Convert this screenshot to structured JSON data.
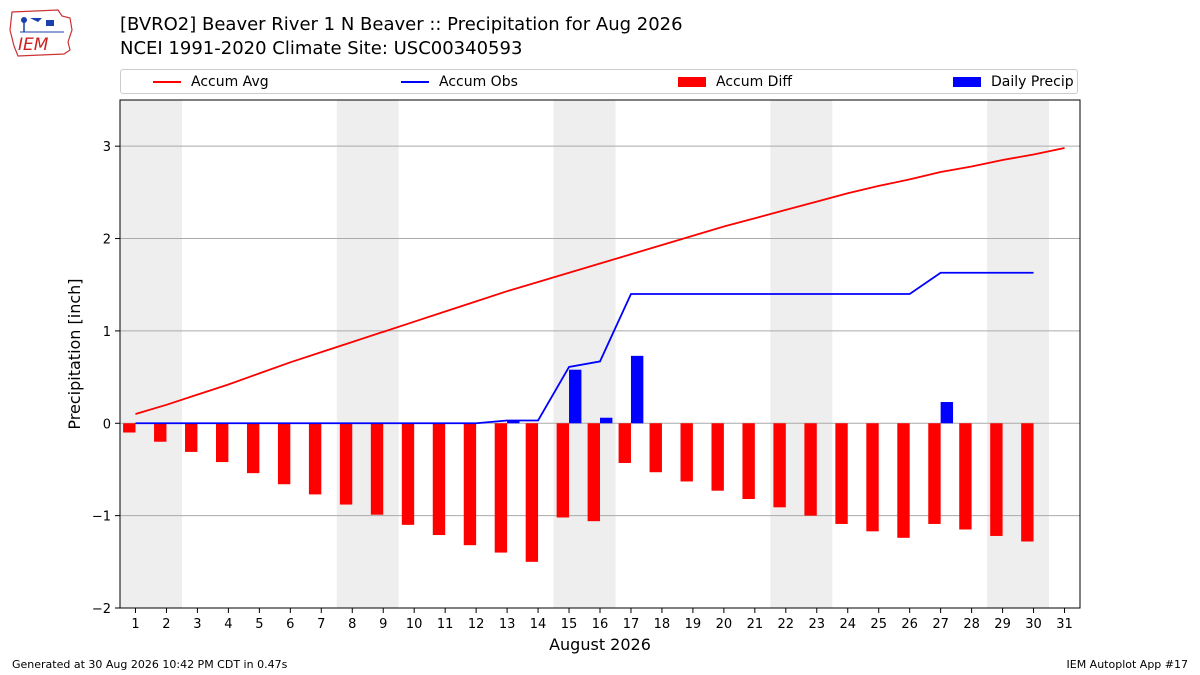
{
  "header": {
    "title_line1": "[BVRO2] Beaver River 1 N Beaver :: Precipitation for Aug 2026",
    "title_line2": "NCEI 1991-2020 Climate Site: USC00340593",
    "logo_text": "IEM"
  },
  "legend": {
    "items": [
      {
        "label": "Accum Avg",
        "kind": "line",
        "color": "#ff0000"
      },
      {
        "label": "Accum Obs",
        "kind": "line",
        "color": "#0000ff"
      },
      {
        "label": "Accum Diff",
        "kind": "bar",
        "color": "#ff0000"
      },
      {
        "label": "Daily Precip",
        "kind": "bar",
        "color": "#0000ff"
      }
    ]
  },
  "chart_data": {
    "type": "bar",
    "title": "[BVRO2] Beaver River 1 N Beaver :: Precipitation for Aug 2026",
    "xlabel": "August 2026",
    "ylabel": "Precipitation [inch]",
    "ylim": [
      -2,
      3.5
    ],
    "xlim": [
      0.5,
      31.5
    ],
    "yticks": [
      -2,
      -1,
      0,
      1,
      2,
      3
    ],
    "ytick_labels": [
      "−2",
      "−1",
      "0",
      "1",
      "2",
      "3"
    ],
    "xticks": [
      1,
      2,
      3,
      4,
      5,
      6,
      7,
      8,
      9,
      10,
      11,
      12,
      13,
      14,
      15,
      16,
      17,
      18,
      19,
      20,
      21,
      22,
      23,
      24,
      25,
      26,
      27,
      28,
      29,
      30,
      31
    ],
    "grid": "horizontal",
    "weekend_shading": [
      [
        1,
        2
      ],
      [
        8,
        9
      ],
      [
        15,
        16
      ],
      [
        22,
        23
      ],
      [
        29,
        30
      ]
    ],
    "series": [
      {
        "name": "Accum Avg",
        "kind": "line",
        "color": "#ff0000",
        "x": [
          1,
          2,
          3,
          4,
          5,
          6,
          7,
          8,
          9,
          10,
          11,
          12,
          13,
          14,
          15,
          16,
          17,
          18,
          19,
          20,
          21,
          22,
          23,
          24,
          25,
          26,
          27,
          28,
          29,
          30,
          31
        ],
        "values": [
          0.1,
          0.2,
          0.31,
          0.42,
          0.54,
          0.66,
          0.77,
          0.88,
          0.99,
          1.1,
          1.21,
          1.32,
          1.43,
          1.53,
          1.63,
          1.73,
          1.83,
          1.93,
          2.03,
          2.13,
          2.22,
          2.31,
          2.4,
          2.49,
          2.57,
          2.64,
          2.72,
          2.78,
          2.85,
          2.91,
          2.98
        ]
      },
      {
        "name": "Accum Obs",
        "kind": "line",
        "color": "#0000ff",
        "x": [
          1,
          2,
          3,
          4,
          5,
          6,
          7,
          8,
          9,
          10,
          11,
          12,
          13,
          14,
          15,
          16,
          17,
          18,
          19,
          20,
          21,
          22,
          23,
          24,
          25,
          26,
          27,
          28,
          29,
          30
        ],
        "values": [
          0,
          0,
          0,
          0,
          0,
          0,
          0,
          0,
          0,
          0,
          0,
          0,
          0.03,
          0.03,
          0.61,
          0.67,
          1.4,
          1.4,
          1.4,
          1.4,
          1.4,
          1.4,
          1.4,
          1.4,
          1.4,
          1.4,
          1.63,
          1.63,
          1.63,
          1.63
        ]
      },
      {
        "name": "Accum Diff",
        "kind": "bar",
        "color": "#ff0000",
        "x": [
          1,
          2,
          3,
          4,
          5,
          6,
          7,
          8,
          9,
          10,
          11,
          12,
          13,
          14,
          15,
          16,
          17,
          18,
          19,
          20,
          21,
          22,
          23,
          24,
          25,
          26,
          27,
          28,
          29,
          30
        ],
        "values": [
          -0.1,
          -0.2,
          -0.31,
          -0.42,
          -0.54,
          -0.66,
          -0.77,
          -0.88,
          -0.99,
          -1.1,
          -1.21,
          -1.32,
          -1.4,
          -1.5,
          -1.02,
          -1.06,
          -0.43,
          -0.53,
          -0.63,
          -0.73,
          -0.82,
          -0.91,
          -1.0,
          -1.09,
          -1.17,
          -1.24,
          -1.09,
          -1.15,
          -1.22,
          -1.28
        ]
      },
      {
        "name": "Daily Precip",
        "kind": "bar",
        "color": "#0000ff",
        "x": [
          13,
          15,
          16,
          17,
          27
        ],
        "values": [
          0.03,
          0.58,
          0.06,
          0.73,
          0.23
        ]
      }
    ]
  },
  "footer": {
    "left": "Generated at 30 Aug 2026 10:42 PM CDT in 0.47s",
    "right": "IEM Autoplot App #17"
  }
}
